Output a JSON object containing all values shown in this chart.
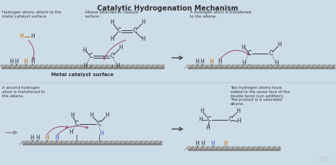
{
  "title": "Catalytic Hydrogenation Mechanism",
  "bg_color": "#ccdde8",
  "text_color": "#333333",
  "surface_color": "#888888",
  "surface_highlight": "#aaaaaa",
  "surface_tick_color": "#777777",
  "carbon_color": "#222222",
  "hydrogen_color": "#333333",
  "hydrogen_orange": "#cc6600",
  "hydrogen_blue": "#4455cc",
  "arrow_color": "#555555",
  "curve_arrow_color": "#994466",
  "orange_arrow_color": "#cc8800",
  "watermark": "知乎用户",
  "panel1_label": "Hydrogen atoms attach to the\nmetal catalyst surface.",
  "panel1_surface": "Metal catalyst surface",
  "panel1_alkene_label": "Alkene attaches to catalyst\nsurface.",
  "panel2_label": "A hydrogen atom is transferred\nto the alkene.",
  "panel3_label": "A second hydrogen\natom is transferred to\nthe alkene.",
  "panel4_label": "Two hydrogen atoms have\nadded to the same face of the\ndouble bond (syn addition).\nThe product is a saturated\nalkane."
}
